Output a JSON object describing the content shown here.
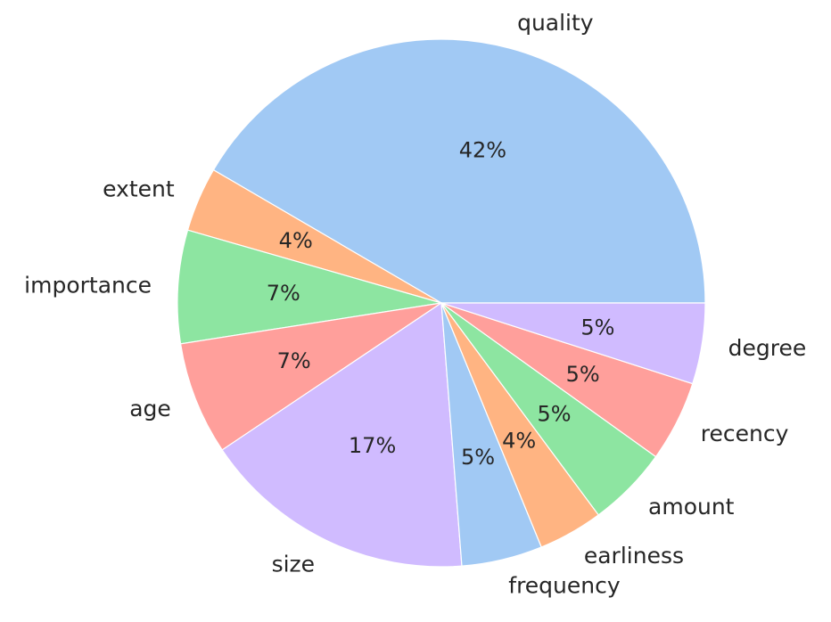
{
  "chart_data": {
    "type": "pie",
    "categories": [
      "quality",
      "extent",
      "importance",
      "age",
      "size",
      "frequency",
      "earliness",
      "amount",
      "recency",
      "degree"
    ],
    "values": [
      42,
      4,
      7,
      7,
      17,
      5,
      4,
      5,
      5,
      5
    ],
    "value_labels": [
      "42%",
      "4%",
      "7%",
      "7%",
      "17%",
      "5%",
      "4%",
      "5%",
      "5%",
      "5%"
    ],
    "colors": [
      "#a1c9f4",
      "#ffb482",
      "#8de5a1",
      "#ff9f9b",
      "#d0bbff",
      "#a1c9f4",
      "#ffb482",
      "#8de5a1",
      "#ff9f9b",
      "#d0bbff"
    ],
    "start_angle_deg": 0,
    "direction": "counterclockwise",
    "legend": "none"
  }
}
